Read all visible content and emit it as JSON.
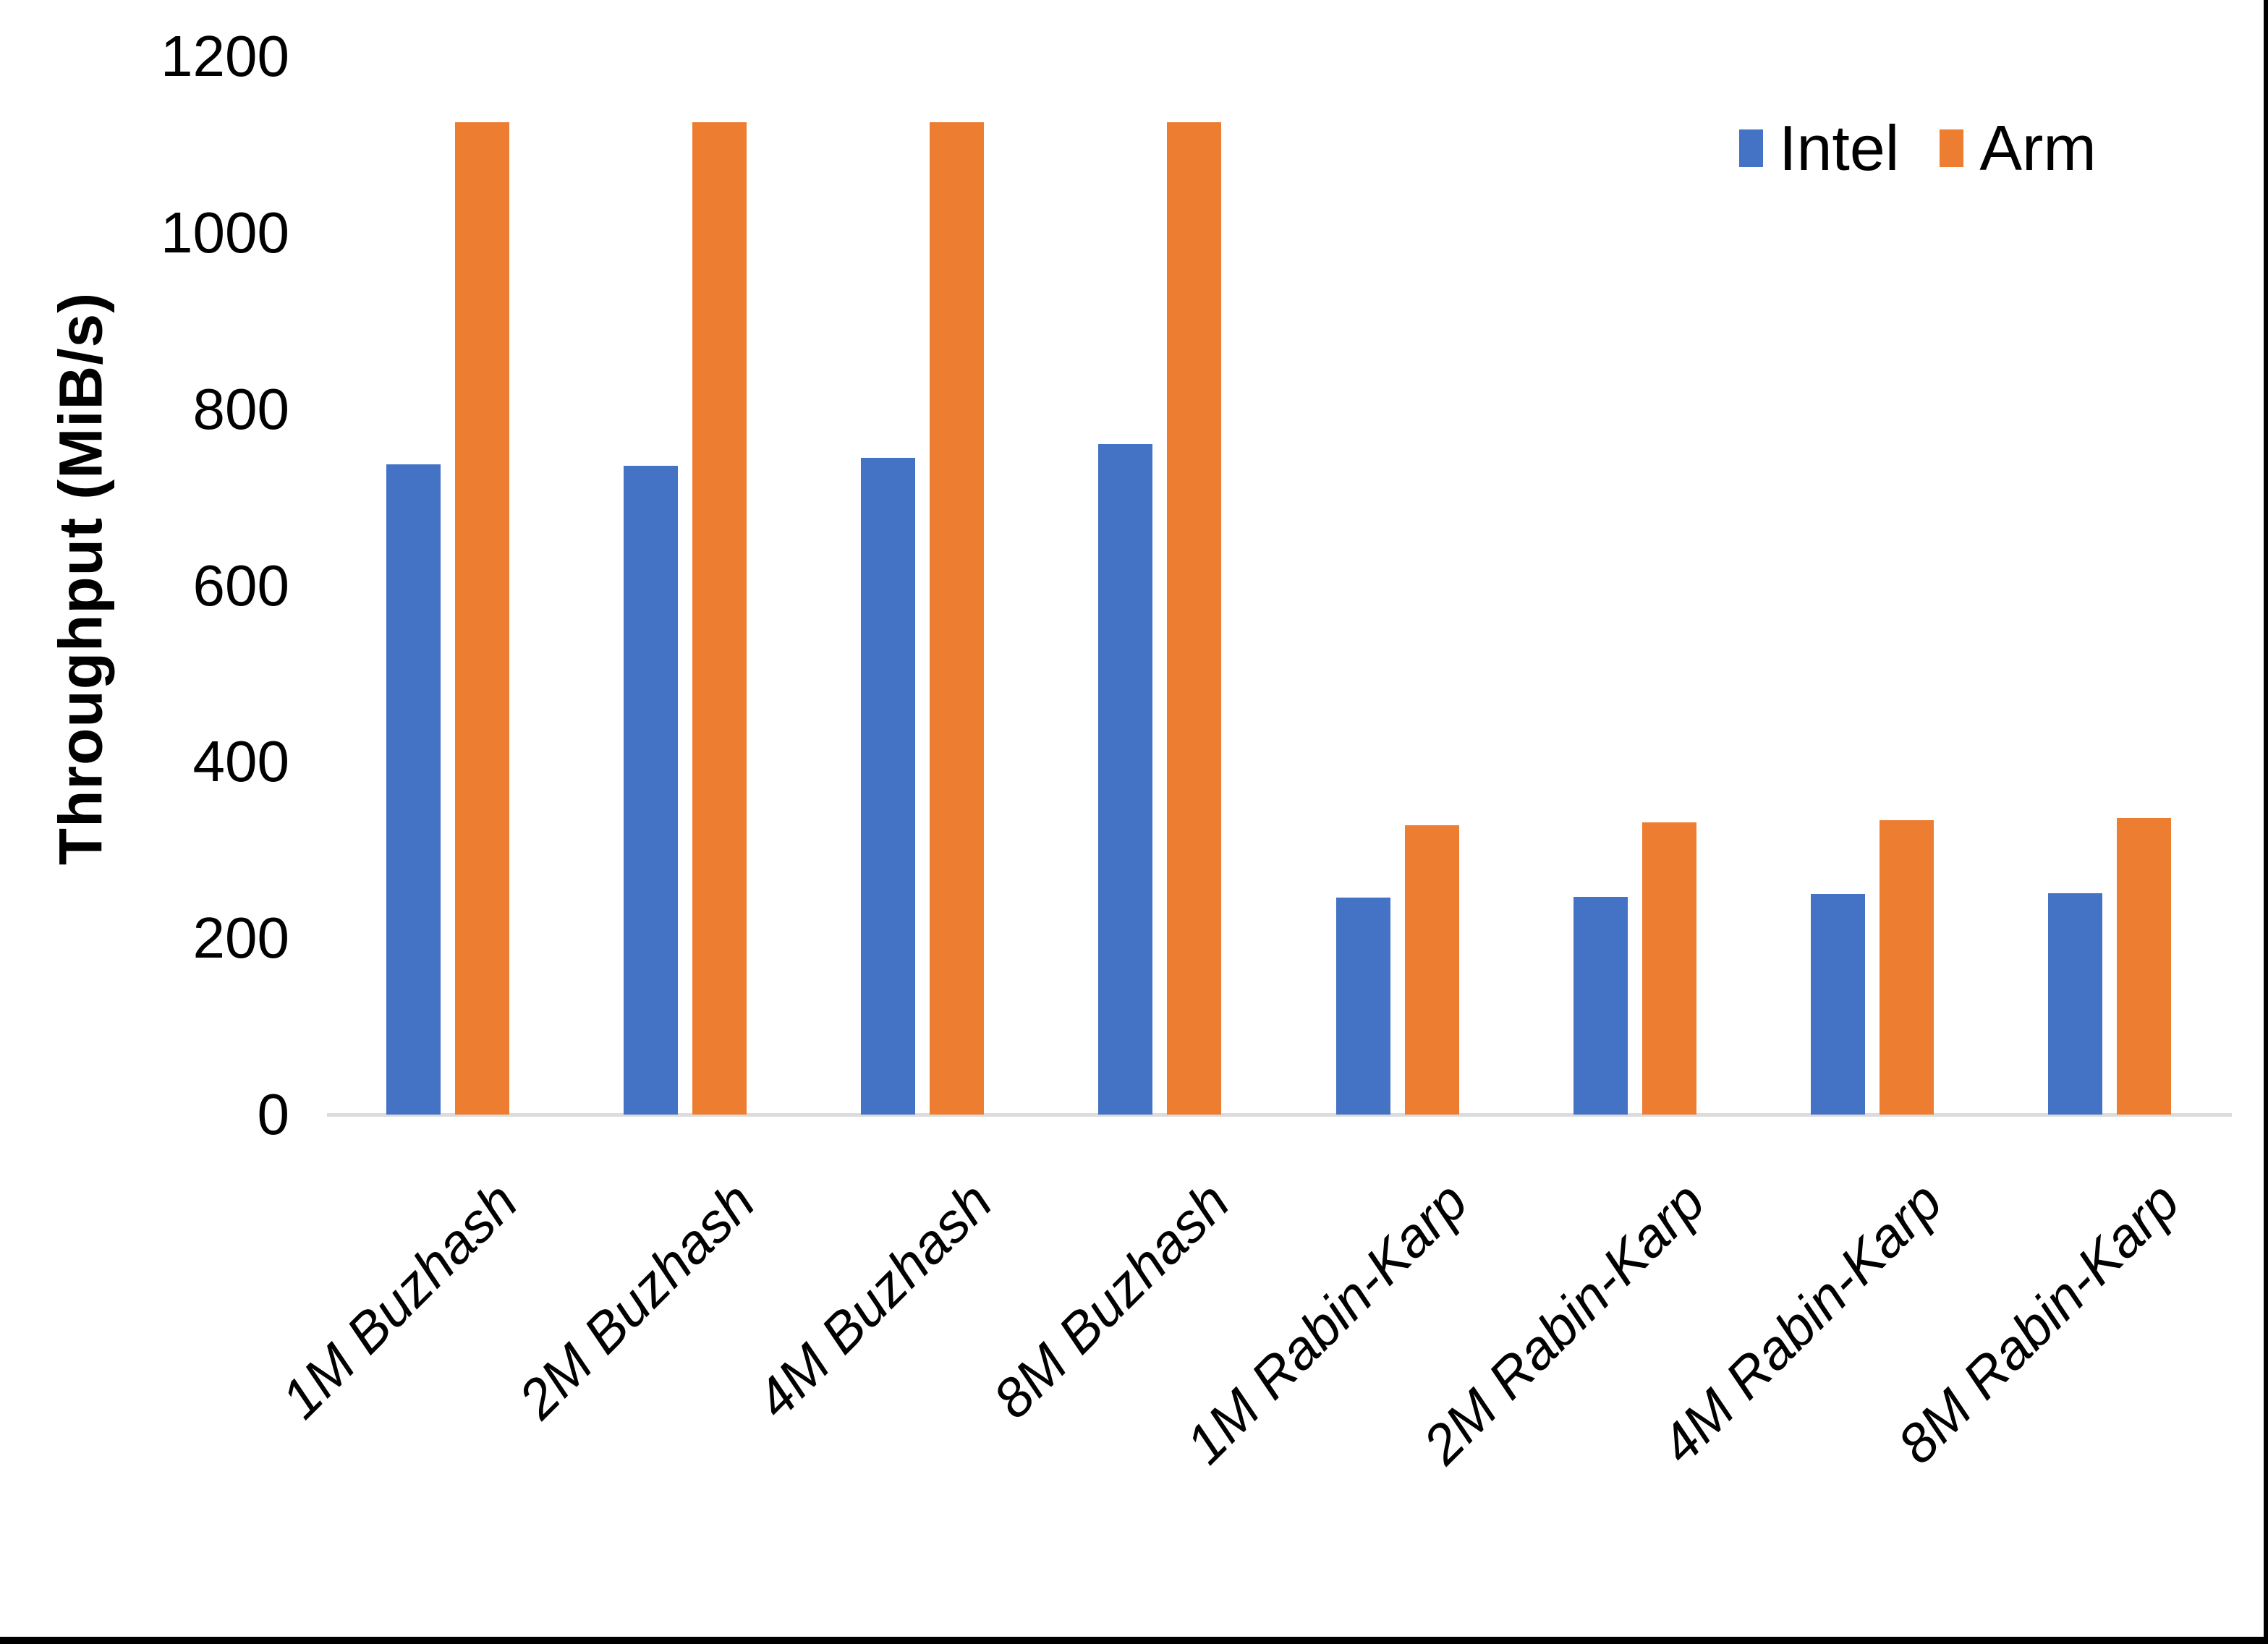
{
  "chart_data": {
    "type": "bar",
    "ylabel": "Throughput (MiB/s)",
    "xlabel": "",
    "ylim": [
      0,
      1200
    ],
    "yticks": [
      0,
      200,
      400,
      600,
      800,
      1000,
      1200
    ],
    "grid": false,
    "legend_position": "top-right",
    "categories": [
      "1M Buzhash",
      "2M Buzhash",
      "4M Buzhash",
      "8M Buzhash",
      "1M Rabin-Karp",
      "2M Rabin-Karp",
      "4M Rabin-Karp",
      "8M Rabin-Karp"
    ],
    "series": [
      {
        "name": "Intel",
        "color": "#4472C4",
        "values": [
          737,
          736,
          745,
          760,
          246,
          247,
          250,
          251
        ]
      },
      {
        "name": "Arm",
        "color": "#ED7D31",
        "values": [
          1125,
          1125,
          1125,
          1125,
          328,
          331,
          334,
          336
        ]
      }
    ]
  },
  "colors": {
    "intel": "#4472C4",
    "arm": "#ED7D31",
    "axis_line": "#DCDCDC",
    "background": "#FFFFFF",
    "window_edge": "#000000"
  }
}
